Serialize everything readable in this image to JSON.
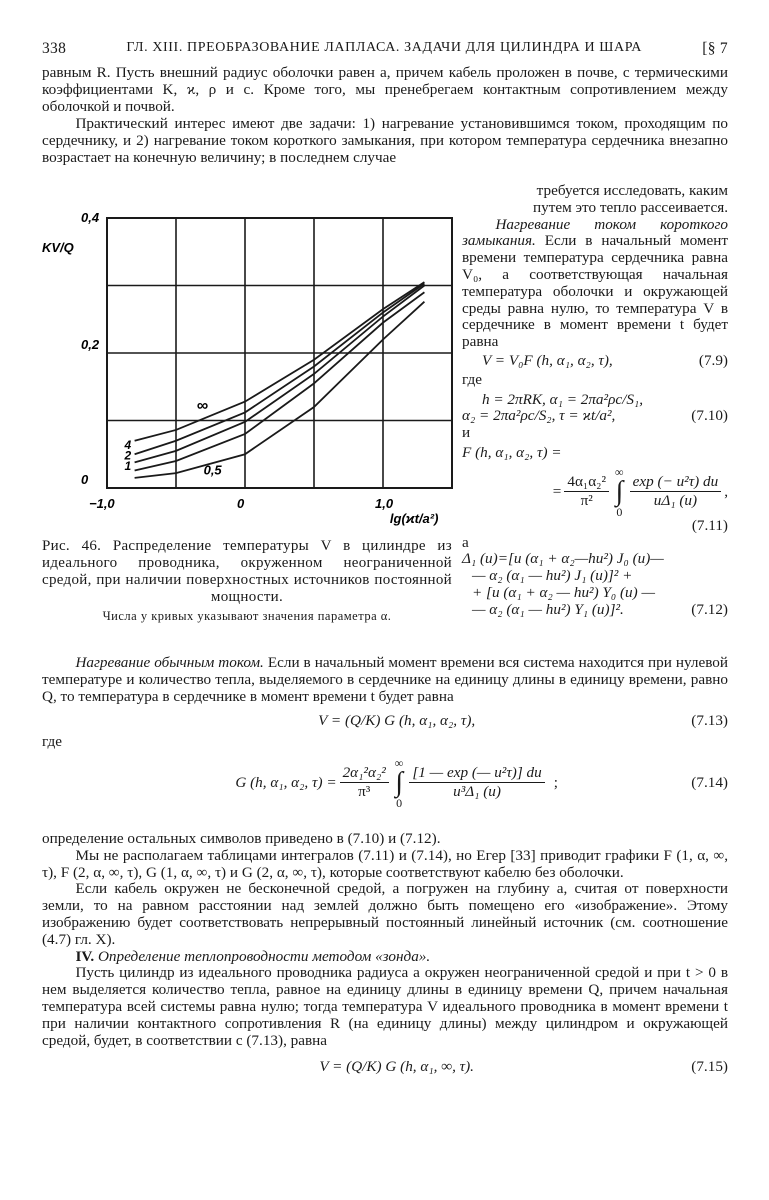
{
  "header": {
    "page_number": "338",
    "title": "ГЛ. XIII. ПРЕОБРАЗОВАНИЕ ЛАПЛАСА. ЗАДАЧИ ДЛЯ ЦИЛИНДРА И ШАРА",
    "section": "[§ 7"
  },
  "para1": "равным R. Пусть внешний радиус оболочки равен a, причем кабель проложен в почве, с термическими коэффициентами K, ϰ, ρ и c. Кроме того, мы пренебрегаем контактным сопротивлением между оболочкой и почвой.",
  "para2": "Практический интерес имеют две задачи: 1) нагревание установившимся током, проходящим по сердечнику, и 2) нагревание током короткого замыкания, при котором температура сердечника внезапно возрастает на конечную величину; в последнем случае",
  "right_col": {
    "cont1": "требуется исследовать, каким",
    "cont2": "путем это тепло рассеивается.",
    "heading": "Нагревание током короткого замыкания.",
    "text": "Если в начальный момент времени температура сердечника равна V₀, а соответствующая начальная температура оболочки и окружающей среды равна нулю, то температура V в сердечнике в момент времени t будет равна",
    "eq_7_9": "V = V₀F (h, α₁, α₂, τ),",
    "eq_7_9_num": "(7.9)",
    "where1": "где",
    "eq_7_10_a": "h = 2πRK,   α₁ = 2πa²ρc/S₁,",
    "eq_7_10_b": "α₂ = 2πa²ρc/S₂,   τ = ϰt/a²,",
    "eq_7_10_num": "(7.10)",
    "and": "и",
    "eq_7_11_lhs": "F (h, α₁, α₂, τ) =",
    "eq_7_11_eq": "=",
    "eq_7_11_coef_num": "4α₁α₂²",
    "eq_7_11_coef_den": "π²",
    "eq_7_11_int_upper": "∞",
    "eq_7_11_int_lower": "0",
    "eq_7_11_num": "exp (− u²τ) du",
    "eq_7_11_den": "uΔ₁ (u)",
    "eq_7_11_comma": ",",
    "eq_7_11_label": "(7.11)",
    "a": "а",
    "eq_7_12_l1": "Δ₁ (u)=[u (α₁ + α₂—hu²) J₀ (u)—",
    "eq_7_12_l2": "— α₂ (α₁ — hu²) J₁ (u)]² +",
    "eq_7_12_l3": "+ [u (α₁ + α₂ — hu²) Y₀ (u) —",
    "eq_7_12_l4": "— α₂ (α₁ — hu²) Y₁ (u)]².",
    "eq_7_12_label": "(7.12)"
  },
  "figure": {
    "caption": "Рис. 46. Распределение температуры V в цилиндре из идеального проводника, окруженном неограниченной средой, при наличии поверхностных источников постоянной мощности.",
    "note": "Числа у кривых указывают значения параметра α."
  },
  "chart_data": {
    "type": "line",
    "xlabel": "lg(ϰt/a²)",
    "ylabel": "KV/Q",
    "xlim": [
      -1.0,
      1.5
    ],
    "ylim": [
      0,
      0.4
    ],
    "x_ticks": [
      {
        "v": -1.0,
        "label": "−1,0"
      },
      {
        "v": 0,
        "label": "0"
      },
      {
        "v": 1.0,
        "label": "1,0"
      }
    ],
    "y_ticks": [
      {
        "v": 0,
        "label": "0"
      },
      {
        "v": 0.2,
        "label": "0,2"
      },
      {
        "v": 0.4,
        "label": "0,4"
      }
    ],
    "grid": true,
    "grid_x": [
      -0.5,
      0,
      0.5,
      1.0
    ],
    "grid_y": [
      0.1,
      0.2,
      0.3
    ],
    "series": [
      {
        "name": "∞",
        "x": [
          -0.8,
          -0.5,
          0,
          0.5,
          1.0,
          1.3
        ],
        "y": [
          0.07,
          0.086,
          0.128,
          0.19,
          0.265,
          0.305
        ]
      },
      {
        "name": "4",
        "x": [
          -0.8,
          -0.5,
          0,
          0.5,
          1.0,
          1.3
        ],
        "y": [
          0.05,
          0.07,
          0.112,
          0.18,
          0.26,
          0.303
        ]
      },
      {
        "name": "2",
        "x": [
          -0.8,
          -0.5,
          0,
          0.5,
          1.0,
          1.3
        ],
        "y": [
          0.038,
          0.055,
          0.098,
          0.169,
          0.254,
          0.3
        ]
      },
      {
        "name": "1",
        "x": [
          -0.8,
          -0.5,
          0,
          0.5,
          1.0,
          1.3
        ],
        "y": [
          0.026,
          0.04,
          0.08,
          0.155,
          0.245,
          0.29
        ]
      },
      {
        "name": "0,5",
        "x": [
          -0.8,
          -0.5,
          0,
          0.5,
          1.0,
          1.3
        ],
        "y": [
          0.015,
          0.022,
          0.05,
          0.12,
          0.22,
          0.276
        ]
      }
    ]
  },
  "main": {
    "p1_heading": "Нагревание обычным током.",
    "p1": " Если в начальный момент времени вся система находится при нулевой температуре и количество тепла, выделяемого в сердечнике на единицу длины в единицу времени, равно Q, то температура в сердечнике в момент времени t будет равна",
    "eq_7_13": "V = (Q/K) G (h, α₁, α₂, τ),",
    "eq_7_13_label": "(7.13)",
    "where2": "где",
    "eq_7_14_lhs": "G (h, α₁, α₂, τ) =",
    "eq_7_14_coef_num": "2α₁²α₂²",
    "eq_7_14_coef_den": "π³",
    "eq_7_14_int_upper": "∞",
    "eq_7_14_int_lower": "0",
    "eq_7_14_num": "[1 — exp (— u²τ)] du",
    "eq_7_14_den": "u³Δ₁ (u)",
    "eq_7_14_semi": ";",
    "eq_7_14_label": "(7.14)",
    "p2": "определение остальных символов приведено в (7.10) и (7.12).",
    "p3": "Мы не располагаем таблицами интегралов (7.11) и (7.14), но Егер [33] приводит графики F (1, α, ∞, τ),  F (2, α, ∞, τ),  G (1, α, ∞, τ)  и  G (2, α, ∞, τ), которые соответствуют кабелю без оболочки.",
    "p4": "Если кабель окружен не бесконечной средой, а погружен на глубину a, считая от поверхности земли, то на равном расстоянии над землей должно быть помещено его «изображение». Этому изображению будет соответствовать непрерывный постоянный линейный источник (см. соотношение (4.7) гл. X).",
    "p5_num": "IV.",
    "p5_heading": " Определение теплопроводности методом «зонда».",
    "p6": "Пусть цилиндр из идеального проводника радиуса a окружен неограниченной средой и при t > 0 в нем выделяется количество тепла, равное на единицу длины в единицу времени Q, причем начальная температура всей системы равна нулю; тогда температура V идеального проводника в момент времени t при наличии контактного сопротивления R (на единицу длины) между цилиндром и окружающей средой, будет, в соответствии с (7.13), равна",
    "eq_7_15": "V = (Q/K) G (h, α₁, ∞, τ).",
    "eq_7_15_label": "(7.15)"
  }
}
